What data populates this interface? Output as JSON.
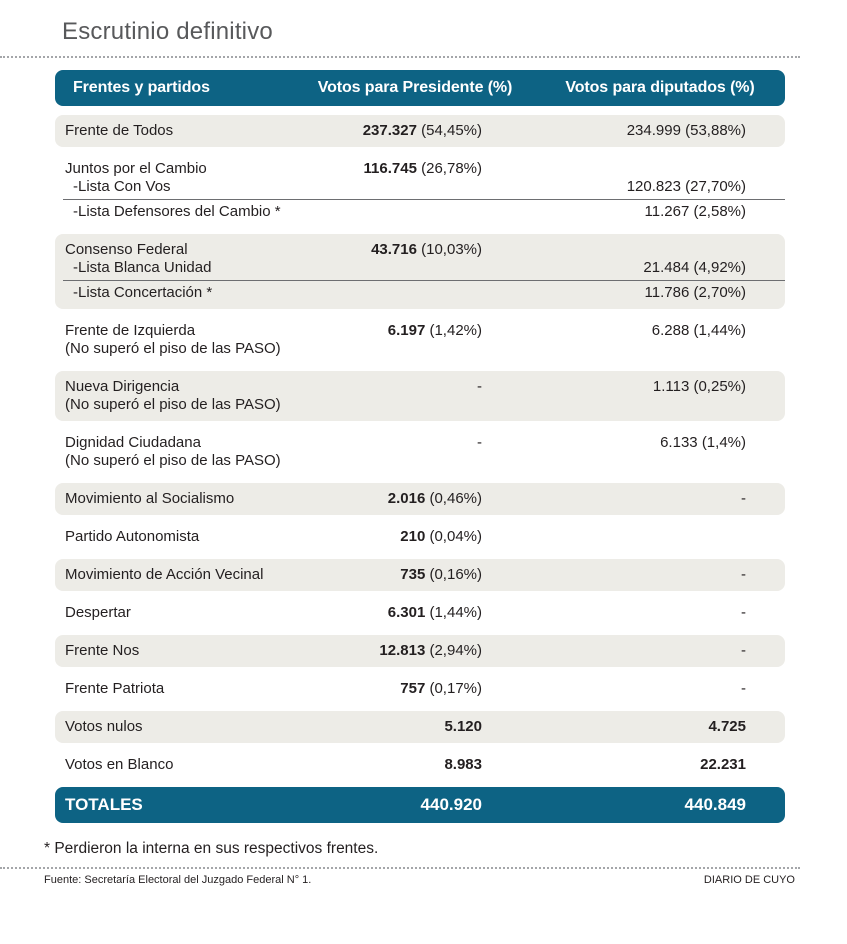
{
  "title": "Escrutinio definitivo",
  "colors": {
    "accent": "#0d6384",
    "row_alt": "#edece7"
  },
  "table": {
    "headers": [
      "Frentes y partidos",
      "Votos para Presidente (%)",
      "Votos para diputados (%)"
    ],
    "rows": [
      {
        "name": "Frente de Todos",
        "pres_votes": "237.327",
        "pres_pct": "(54,45%)",
        "dip_votes": "234.999",
        "dip_pct": "(53,88%)"
      },
      {
        "name": "Juntos por el Cambio",
        "pres_votes": "116.745",
        "pres_pct": "(26,78%)",
        "sub": [
          {
            "name": "-Lista Con Vos",
            "dip_votes": "120.823",
            "dip_pct": "(27,70%)"
          },
          {
            "name": "-Lista Defensores del Cambio *",
            "dip_votes": "11.267",
            "dip_pct": "(2,58%)"
          }
        ]
      },
      {
        "name": "Consenso Federal",
        "pres_votes": "43.716",
        "pres_pct": "(10,03%)",
        "sub": [
          {
            "name": "-Lista Blanca Unidad",
            "dip_votes": "21.484",
            "dip_pct": "(4,92%)"
          },
          {
            "name": "-Lista Concertación *",
            "dip_votes": "11.786",
            "dip_pct": "(2,70%)"
          }
        ]
      },
      {
        "name": "Frente de Izquierda",
        "note": "(No superó el piso de las PASO)",
        "pres_votes": "6.197",
        "pres_pct": "(1,42%)",
        "dip_votes": "6.288",
        "dip_pct": "(1,44%)"
      },
      {
        "name": "Nueva Dirigencia",
        "note": "(No superó el piso de las PASO)",
        "pres_dash": "-",
        "dip_votes": "1.113",
        "dip_pct": "(0,25%)"
      },
      {
        "name": "Dignidad Ciudadana",
        "note": "(No superó el piso de las PASO)",
        "pres_dash": "-",
        "dip_votes": "6.133",
        "dip_pct": "(1,4%)"
      },
      {
        "name": "Movimiento al Socialismo",
        "pres_votes": "2.016",
        "pres_pct": "(0,46%)",
        "dip_dash": "-"
      },
      {
        "name": "Partido Autonomista",
        "pres_votes": "210",
        "pres_pct": "(0,04%)"
      },
      {
        "name": "Movimiento de Acción Vecinal",
        "pres_votes": "735",
        "pres_pct": "(0,16%)",
        "dip_dash": "-"
      },
      {
        "name": "Despertar",
        "pres_votes": "6.301",
        "pres_pct": "(1,44%)",
        "dip_dash": "-"
      },
      {
        "name": "Frente Nos",
        "pres_votes": "12.813",
        "pres_pct": "(2,94%)",
        "dip_dash": "-"
      },
      {
        "name": "Frente Patriota",
        "pres_votes": "757",
        "pres_pct": "(0,17%)",
        "dip_dash": "-"
      },
      {
        "name": "Votos nulos",
        "pres_votes": "5.120",
        "dip_bold": "4.725"
      },
      {
        "name": "Votos en Blanco",
        "pres_votes": "8.983",
        "dip_bold": "22.231"
      }
    ],
    "totals": {
      "label": "TOTALES",
      "president": "440.920",
      "deputies": "440.849"
    }
  },
  "footnote": "* Perdieron la interna en sus respectivos frentes.",
  "footer": {
    "source": "Fuente: Secretaría Electoral del Juzgado Federal N° 1.",
    "credit": "DIARIO DE CUYO"
  },
  "chart_data": {
    "type": "table",
    "title": "Escrutinio definitivo",
    "columns": [
      "Frentes y partidos",
      "Votos para Presidente (%)",
      "Votos para diputados (%)"
    ],
    "rows": [
      [
        "Frente de Todos",
        "237.327 (54,45%)",
        "234.999 (53,88%)"
      ],
      [
        "Juntos por el Cambio",
        "116.745 (26,78%)",
        ""
      ],
      [
        "-Lista Con Vos",
        "",
        "120.823 (27,70%)"
      ],
      [
        "-Lista Defensores del Cambio *",
        "",
        "11.267 (2,58%)"
      ],
      [
        "Consenso Federal",
        "43.716 (10,03%)",
        ""
      ],
      [
        "-Lista Blanca Unidad",
        "",
        "21.484 (4,92%)"
      ],
      [
        "-Lista Concertación *",
        "",
        "11.786 (2,70%)"
      ],
      [
        "Frente de Izquierda (No superó el piso de las PASO)",
        "6.197 (1,42%)",
        "6.288 (1,44%)"
      ],
      [
        "Nueva Dirigencia (No superó el piso de las PASO)",
        "-",
        "1.113 (0,25%)"
      ],
      [
        "Dignidad Ciudadana (No superó el piso de las PASO)",
        "-",
        "6.133 (1,4%)"
      ],
      [
        "Movimiento al Socialismo",
        "2.016 (0,46%)",
        "-"
      ],
      [
        "Partido Autonomista",
        "210 (0,04%)",
        ""
      ],
      [
        "Movimiento de Acción Vecinal",
        "735 (0,16%)",
        "-"
      ],
      [
        "Despertar",
        "6.301 (1,44%)",
        "-"
      ],
      [
        "Frente Nos",
        "12.813 (2,94%)",
        "-"
      ],
      [
        "Frente Patriota",
        "757 (0,17%)",
        "-"
      ],
      [
        "Votos nulos",
        "5.120",
        "4.725"
      ],
      [
        "Votos en Blanco",
        "8.983",
        "22.231"
      ],
      [
        "TOTALES",
        "440.920",
        "440.849"
      ]
    ]
  }
}
